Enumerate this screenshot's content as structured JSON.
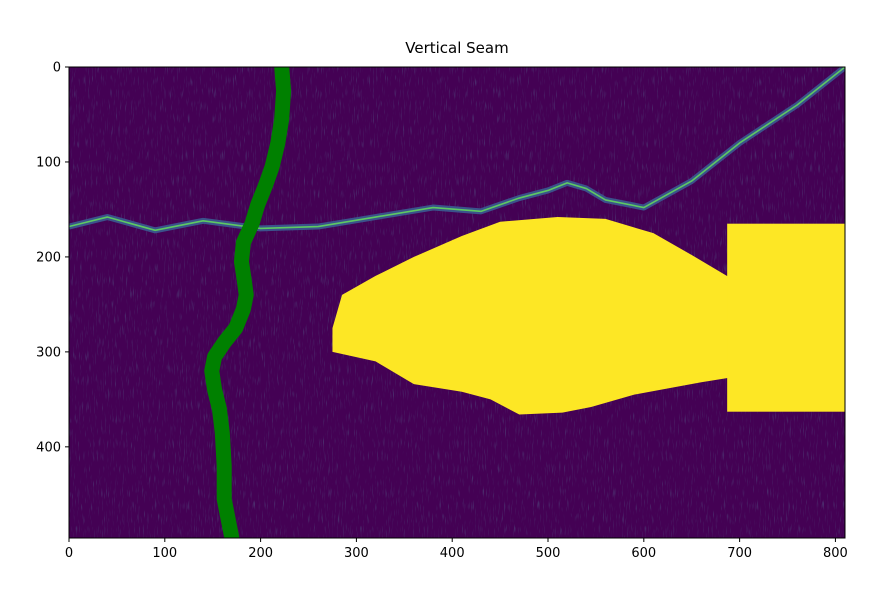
{
  "chart_data": {
    "type": "heatmap",
    "title": "Vertical Seam",
    "xlabel": "",
    "ylabel": "",
    "image_width": 810,
    "image_height": 496,
    "xlim": [
      0,
      810
    ],
    "ylim": [
      496,
      0
    ],
    "x_ticks": [
      0,
      100,
      200,
      300,
      400,
      500,
      600,
      700,
      800
    ],
    "y_ticks": [
      0,
      100,
      200,
      300,
      400
    ],
    "colormap": "viridis",
    "colors": {
      "background": "#440154",
      "edge_dim": "#3b528b",
      "edge_bright": "#21918c",
      "edge_hot": "#5ec962",
      "mask": "#fde725",
      "seam": "#008000"
    },
    "mask_regions": [
      {
        "shape": "polygon",
        "points": [
          [
            275,
            275
          ],
          [
            285,
            240
          ],
          [
            320,
            220
          ],
          [
            360,
            200
          ],
          [
            410,
            178
          ],
          [
            450,
            163
          ],
          [
            510,
            158
          ],
          [
            560,
            160
          ],
          [
            610,
            175
          ],
          [
            650,
            198
          ],
          [
            690,
            222
          ],
          [
            715,
            242
          ],
          [
            715,
            323
          ],
          [
            660,
            332
          ],
          [
            590,
            345
          ],
          [
            545,
            358
          ],
          [
            515,
            364
          ],
          [
            470,
            366
          ],
          [
            440,
            350
          ],
          [
            410,
            342
          ],
          [
            360,
            334
          ],
          [
            320,
            310
          ],
          [
            275,
            300
          ]
        ]
      },
      {
        "shape": "rect",
        "x": [
          687,
          810
        ],
        "y": [
          165,
          363
        ]
      }
    ],
    "seam_path": {
      "x": [
        222,
        224,
        222,
        218,
        212,
        205,
        197,
        191,
        182,
        180,
        183,
        185,
        182,
        174,
        162,
        152,
        149,
        152,
        157,
        160,
        162,
        162,
        170
      ],
      "y": [
        0,
        25,
        55,
        80,
        105,
        125,
        145,
        165,
        185,
        205,
        225,
        240,
        255,
        275,
        290,
        305,
        320,
        340,
        360,
        385,
        420,
        455,
        496
      ]
    },
    "ridge_path": {
      "x": [
        0,
        40,
        90,
        140,
        200,
        260,
        320,
        380,
        430,
        470,
        500,
        520,
        540,
        560,
        600,
        650,
        700,
        760,
        810
      ],
      "y": [
        168,
        158,
        172,
        162,
        170,
        168,
        158,
        148,
        152,
        138,
        130,
        122,
        128,
        140,
        148,
        120,
        80,
        40,
        0
      ]
    }
  }
}
